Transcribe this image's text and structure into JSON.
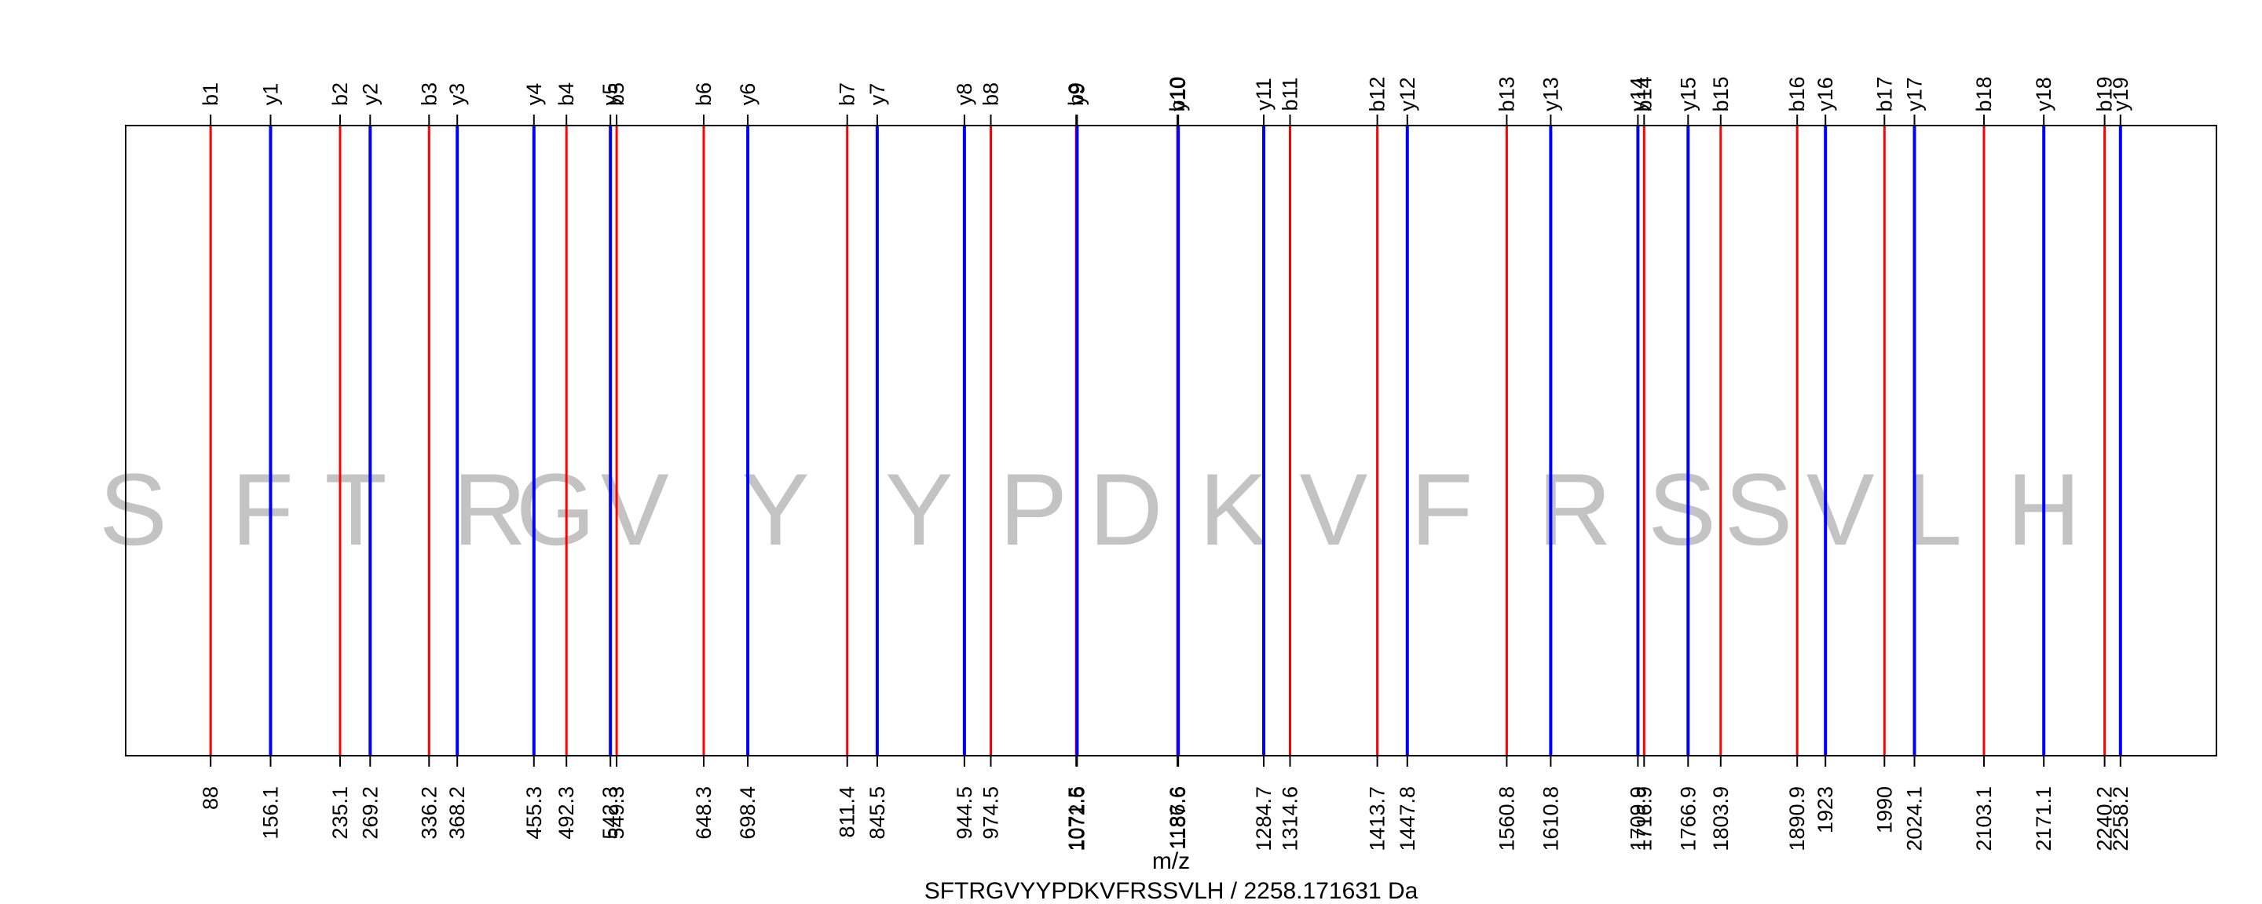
{
  "chart_data": {
    "type": "spectrum",
    "xlabel": "m/z",
    "subtitle": "SFTRGVYYPDKVFRSSVLH / 2258.171631 Da",
    "xlim": [
      -8.6,
      2367.3
    ],
    "colors": {
      "b": "#ff0000",
      "y": "#0000ff",
      "residue": "#c3c3c3",
      "frame": "#000000"
    },
    "b_ions": [
      {
        "name": "b1",
        "mz": 88.0,
        "label": "88"
      },
      {
        "name": "b2",
        "mz": 235.1,
        "label": "235.1"
      },
      {
        "name": "b3",
        "mz": 336.2,
        "label": "336.2"
      },
      {
        "name": "b4",
        "mz": 492.3,
        "label": "492.3"
      },
      {
        "name": "b5",
        "mz": 549.3,
        "label": "549.3"
      },
      {
        "name": "b6",
        "mz": 648.3,
        "label": "648.3"
      },
      {
        "name": "b7",
        "mz": 811.4,
        "label": "811.4"
      },
      {
        "name": "b8",
        "mz": 974.5,
        "label": "974.5"
      },
      {
        "name": "b9",
        "mz": 1071.5,
        "label": "1071.5"
      },
      {
        "name": "b10",
        "mz": 1186.6,
        "label": "1186.6"
      },
      {
        "name": "b11",
        "mz": 1314.6,
        "label": "1314.6"
      },
      {
        "name": "b12",
        "mz": 1413.7,
        "label": "1413.7"
      },
      {
        "name": "b13",
        "mz": 1560.8,
        "label": "1560.8"
      },
      {
        "name": "b14",
        "mz": 1716.9,
        "label": "1716.9"
      },
      {
        "name": "b15",
        "mz": 1803.9,
        "label": "1803.9"
      },
      {
        "name": "b16",
        "mz": 1890.9,
        "label": "1890.9"
      },
      {
        "name": "b17",
        "mz": 1990.0,
        "label": "1990"
      },
      {
        "name": "b18",
        "mz": 2103.1,
        "label": "2103.1"
      },
      {
        "name": "b19",
        "mz": 2240.2,
        "label": "2240.2"
      }
    ],
    "y_ions": [
      {
        "name": "y1",
        "mz": 156.1,
        "label": "156.1"
      },
      {
        "name": "y2",
        "mz": 269.2,
        "label": "269.2"
      },
      {
        "name": "y3",
        "mz": 368.2,
        "label": "368.2"
      },
      {
        "name": "y4",
        "mz": 455.3,
        "label": "455.3"
      },
      {
        "name": "y5",
        "mz": 542.3,
        "label": "542.3"
      },
      {
        "name": "y6",
        "mz": 698.4,
        "label": "698.4"
      },
      {
        "name": "y7",
        "mz": 845.5,
        "label": "845.5"
      },
      {
        "name": "y8",
        "mz": 944.5,
        "label": "944.5"
      },
      {
        "name": "y9",
        "mz": 1072.6,
        "label": "1072.6"
      },
      {
        "name": "y10",
        "mz": 1187.6,
        "label": "1187.6"
      },
      {
        "name": "y11",
        "mz": 1284.7,
        "label": "1284.7"
      },
      {
        "name": "y12",
        "mz": 1447.8,
        "label": "1447.8"
      },
      {
        "name": "y13",
        "mz": 1610.8,
        "label": "1610.8"
      },
      {
        "name": "y14",
        "mz": 1709.9,
        "label": "1709.9"
      },
      {
        "name": "y15",
        "mz": 1766.9,
        "label": "1766.9"
      },
      {
        "name": "y16",
        "mz": 1923.0,
        "label": "1923"
      },
      {
        "name": "y17",
        "mz": 2024.1,
        "label": "2024.1"
      },
      {
        "name": "y18",
        "mz": 2171.1,
        "label": "2171.1"
      },
      {
        "name": "y19",
        "mz": 2258.2,
        "label": "2258.2"
      }
    ],
    "residues": [
      {
        "aa": "S",
        "mz": 0
      },
      {
        "aa": "F",
        "mz": 147
      },
      {
        "aa": "T",
        "mz": 253
      },
      {
        "aa": "R",
        "mz": 405
      },
      {
        "aa": "G",
        "mz": 480
      },
      {
        "aa": "V",
        "mz": 570
      },
      {
        "aa": "Y",
        "mz": 730
      },
      {
        "aa": "Y",
        "mz": 893
      },
      {
        "aa": "P",
        "mz": 1023
      },
      {
        "aa": "D",
        "mz": 1128
      },
      {
        "aa": "K",
        "mz": 1250
      },
      {
        "aa": "V",
        "mz": 1364
      },
      {
        "aa": "F",
        "mz": 1487
      },
      {
        "aa": "R",
        "mz": 1638
      },
      {
        "aa": "S",
        "mz": 1760
      },
      {
        "aa": "S",
        "mz": 1847
      },
      {
        "aa": "V",
        "mz": 1940
      },
      {
        "aa": "L",
        "mz": 2046
      },
      {
        "aa": "H",
        "mz": 2171
      }
    ]
  }
}
